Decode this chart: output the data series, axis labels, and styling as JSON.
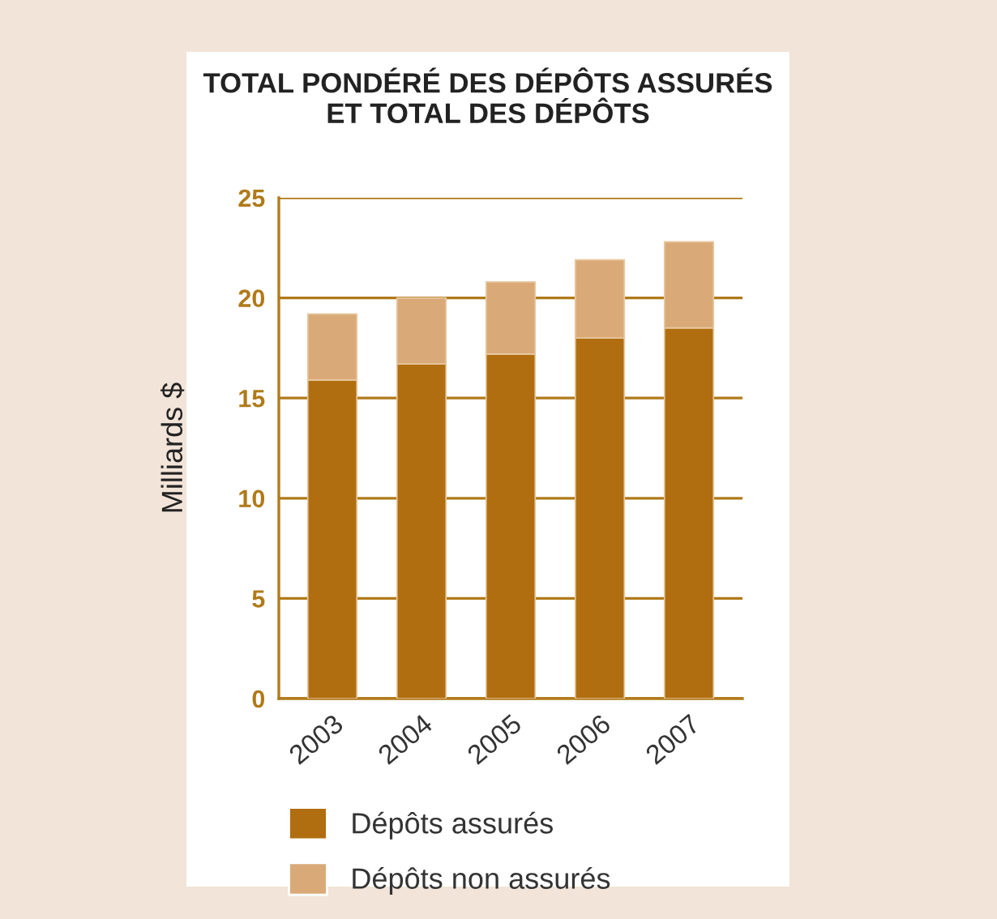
{
  "chart_data": {
    "type": "bar",
    "title": "TOTAL PONDÉRÉ DES DÉPÔTS ASSURÉS\nET TOTAL DES DÉPÔTS",
    "ylabel": "Milliards $",
    "categories": [
      "2003",
      "2004",
      "2005",
      "2006",
      "2007"
    ],
    "series": [
      {
        "name": "Dépôts assurés",
        "color": "#b06e10",
        "values": [
          15.9,
          16.7,
          17.2,
          18.0,
          18.5
        ]
      },
      {
        "name": "Dépôts non assurés",
        "color": "#d9aa78",
        "values": [
          3.3,
          3.3,
          3.6,
          3.9,
          4.3
        ]
      }
    ],
    "stacked": true,
    "ylim": [
      0,
      25
    ],
    "yticks": [
      0,
      5,
      10,
      15,
      20,
      25
    ],
    "grid": "y",
    "legend": "bottom"
  }
}
